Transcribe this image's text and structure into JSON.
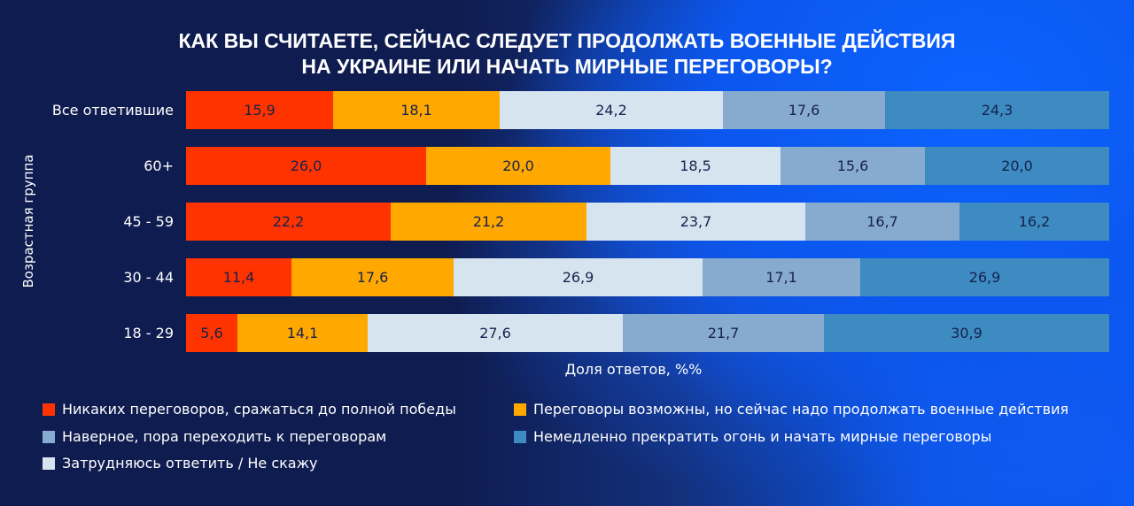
{
  "chart_data": {
    "type": "bar",
    "orientation": "horizontal-stacked-100",
    "title_lines": [
      "КАК ВЫ СЧИТАЕТЕ, СЕЙЧАС СЛЕДУЕТ ПРОДОЛЖАТЬ ВОЕННЫЕ ДЕЙСТВИЯ",
      "НА УКРАИНЕ ИЛИ НАЧАТЬ МИРНЫЕ ПЕРЕГОВОРЫ?"
    ],
    "xlabel": "Доля ответов, %%",
    "ylabel": "Возрастная группа",
    "categories": [
      "Все ответившие",
      "60+",
      "45 - 59",
      "30 - 44",
      "18 - 29"
    ],
    "series": [
      {
        "name": "Никаких переговоров, сражаться до полной победы",
        "color": "#ff3300",
        "values": [
          15.9,
          26.0,
          22.2,
          11.4,
          5.6
        ],
        "labels": [
          "15,9",
          "26,0",
          "22,2",
          "11,4",
          "5,6"
        ]
      },
      {
        "name": "Переговоры возможны, но сейчас надо продолжать военные действия",
        "color": "#ffa800",
        "values": [
          18.1,
          20.0,
          21.2,
          17.6,
          14.1
        ],
        "labels": [
          "18,1",
          "20,0",
          "21,2",
          "17,6",
          "14,1"
        ]
      },
      {
        "name": "Затрудняюсь ответить / Не скажу",
        "color": "#d6e4f0",
        "values": [
          24.2,
          18.5,
          23.7,
          26.9,
          27.6
        ],
        "labels": [
          "24,2",
          "18,5",
          "23,7",
          "26,9",
          "27,6"
        ]
      },
      {
        "name": "Наверное, пора переходить к переговорам",
        "color": "#86abcf",
        "values": [
          17.6,
          15.6,
          16.7,
          17.1,
          21.7
        ],
        "labels": [
          "17,6",
          "15,6",
          "16,7",
          "17,1",
          "21,7"
        ]
      },
      {
        "name": "Немедленно прекратить огонь и начать мирные переговоры",
        "color": "#3d8bc1",
        "values": [
          24.3,
          20.0,
          16.2,
          26.9,
          30.9
        ],
        "labels": [
          "24,3",
          "20,0",
          "16,2",
          "26,9",
          "30,9"
        ]
      }
    ],
    "legend_order": [
      0,
      1,
      3,
      4,
      2
    ],
    "legend_placement": "bottom",
    "grid": false
  }
}
